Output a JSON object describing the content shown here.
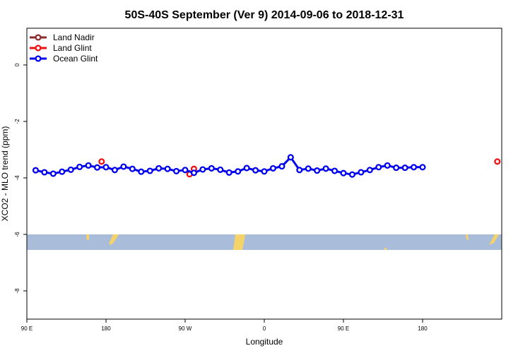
{
  "chart_data": {
    "type": "line",
    "title": "50S-40S September (Ver 9)   2014-09-06 to 2018-12-31",
    "xlabel": "Longitude",
    "ylabel": "XCO2 - MLO trend (ppm)",
    "xlim": [
      -90,
      180
    ],
    "ylim": [
      -9.0,
      1.3
    ],
    "x_ticks": [
      {
        "value": -90,
        "label": "90 E"
      },
      {
        "value": -45,
        "label": "180"
      },
      {
        "value": 0,
        "label": "90 W"
      },
      {
        "value": 45,
        "label": "0"
      },
      {
        "value": 90,
        "label": "90 E"
      },
      {
        "value": 135,
        "label": "180"
      }
    ],
    "y_ticks": [
      {
        "value": 0,
        "label": "0"
      },
      {
        "value": -2,
        "label": "-2"
      },
      {
        "value": -4,
        "label": "-4"
      },
      {
        "value": -6,
        "label": "-6"
      },
      {
        "value": -8,
        "label": "-8"
      }
    ],
    "legend": {
      "position": "top-left"
    },
    "latitude_band": {
      "y_range": [
        -6.55,
        -6.0
      ],
      "color": "#a9bcd9",
      "land_color": "#f5d36b"
    },
    "series": [
      {
        "name": "Land Nadir",
        "color": "#8b2b2b",
        "x": [],
        "y": []
      },
      {
        "name": "Land Glint",
        "color": "#ee1111",
        "x": [
          -47.5,
          2.5,
          5,
          177.5
        ],
        "y": [
          -3.42,
          -3.87,
          -3.68,
          -3.42
        ]
      },
      {
        "name": "Ocean Glint",
        "color": "#0000ee",
        "x": [
          -85,
          -80,
          -75,
          -70,
          -65,
          -60,
          -55,
          -50,
          -45,
          -40,
          -35,
          -30,
          -25,
          -20,
          -15,
          -10,
          -5,
          0,
          5,
          10,
          15,
          20,
          25,
          30,
          35,
          40,
          45,
          50,
          55,
          60,
          65,
          70,
          75,
          80,
          85,
          90,
          95,
          100,
          105,
          110,
          115,
          120,
          125,
          130,
          135
        ],
        "y": [
          -3.73,
          -3.8,
          -3.85,
          -3.78,
          -3.71,
          -3.61,
          -3.56,
          -3.63,
          -3.62,
          -3.72,
          -3.6,
          -3.68,
          -3.78,
          -3.75,
          -3.66,
          -3.68,
          -3.76,
          -3.72,
          -3.82,
          -3.7,
          -3.66,
          -3.71,
          -3.81,
          -3.77,
          -3.65,
          -3.73,
          -3.77,
          -3.66,
          -3.59,
          -3.27,
          -3.72,
          -3.67,
          -3.74,
          -3.67,
          -3.75,
          -3.83,
          -3.88,
          -3.8,
          -3.72,
          -3.62,
          -3.56,
          -3.64,
          -3.64,
          -3.62,
          -3.62
        ]
      }
    ]
  }
}
